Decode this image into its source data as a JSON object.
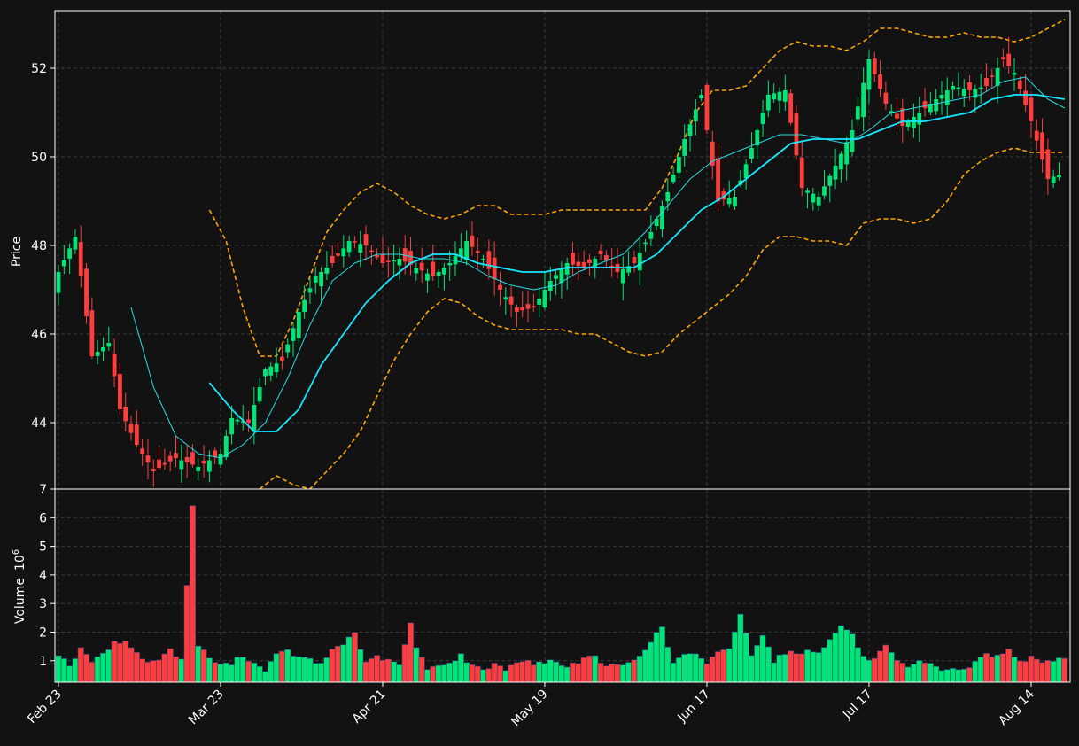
{
  "chart_data": {
    "type": "candlestick",
    "x_tick_labels": [
      "Feb 23",
      "Mar 23",
      "Apr 21",
      "May 19",
      "Jun 17",
      "Jul 17",
      "Aug 14"
    ],
    "x_tick_index": [
      0,
      29,
      58,
      87,
      116,
      145,
      174
    ],
    "price_panel": {
      "ylabel": "Price",
      "ylim": [
        42.5,
        53.3
      ],
      "y_ticks": [
        "44",
        "46",
        "48",
        "50",
        "52"
      ],
      "grid": true,
      "overlays": [
        "moving-average-short",
        "moving-average-long",
        "bollinger-upper",
        "bollinger-lower"
      ]
    },
    "volume_panel": {
      "ylabel": "Volume",
      "yunit_base": "10",
      "yunit_exp": "6",
      "ylim": [
        0.25,
        7.0
      ],
      "y_ticks": [
        "1",
        "2",
        "3",
        "4",
        "5",
        "6",
        "7"
      ],
      "grid": true
    },
    "colors": {
      "background": "#121212",
      "up": "#00e676",
      "down": "#ff3d3d",
      "ma_short": "#26d9e3",
      "ma_long": "#18e6ff",
      "bollinger": "#ffa500",
      "grid": "#3a3a3a",
      "text": "#ffffff"
    },
    "anchors": {
      "close": [
        [
          0,
          47.4
        ],
        [
          3,
          48.2
        ],
        [
          6,
          45.5
        ],
        [
          9,
          45.8
        ],
        [
          11,
          44.3
        ],
        [
          14,
          43.5
        ],
        [
          17,
          42.9
        ],
        [
          21,
          43.2
        ],
        [
          25,
          43.0
        ],
        [
          29,
          43.3
        ],
        [
          31,
          44.1
        ],
        [
          34,
          44.0
        ],
        [
          37,
          45.2
        ],
        [
          40,
          45.4
        ],
        [
          43,
          46.5
        ],
        [
          46,
          47.3
        ],
        [
          49,
          47.6
        ],
        [
          52,
          48.1
        ],
        [
          55,
          48.0
        ],
        [
          58,
          47.6
        ],
        [
          61,
          47.7
        ],
        [
          64,
          47.5
        ],
        [
          67,
          47.3
        ],
        [
          70,
          47.6
        ],
        [
          73,
          48.1
        ],
        [
          76,
          47.7
        ],
        [
          79,
          47.0
        ],
        [
          82,
          46.5
        ],
        [
          85,
          46.6
        ],
        [
          88,
          47.2
        ],
        [
          91,
          47.6
        ],
        [
          94,
          47.5
        ],
        [
          97,
          47.8
        ],
        [
          100,
          47.4
        ],
        [
          103,
          47.6
        ],
        [
          106,
          48.3
        ],
        [
          109,
          49.2
        ],
        [
          112,
          50.4
        ],
        [
          115,
          51.4
        ],
        [
          118,
          49.0
        ],
        [
          121,
          49.1
        ],
        [
          124,
          50.2
        ],
        [
          127,
          51.4
        ],
        [
          130,
          51.5
        ],
        [
          133,
          49.3
        ],
        [
          136,
          49.1
        ],
        [
          139,
          49.8
        ],
        [
          142,
          50.6
        ],
        [
          145,
          52.2
        ],
        [
          148,
          51.2
        ],
        [
          151,
          50.7
        ],
        [
          154,
          51.0
        ],
        [
          157,
          51.3
        ],
        [
          160,
          51.6
        ],
        [
          163,
          51.5
        ],
        [
          166,
          51.6
        ],
        [
          169,
          52.2
        ],
        [
          171,
          51.9
        ],
        [
          174,
          50.8
        ],
        [
          177,
          49.5
        ],
        [
          179,
          49.6
        ]
      ],
      "ma_short": [
        [
          13,
          46.6
        ],
        [
          17,
          44.8
        ],
        [
          21,
          43.7
        ],
        [
          25,
          43.3
        ],
        [
          29,
          43.2
        ],
        [
          33,
          43.5
        ],
        [
          37,
          44.0
        ],
        [
          41,
          45.0
        ],
        [
          45,
          46.2
        ],
        [
          49,
          47.2
        ],
        [
          53,
          47.6
        ],
        [
          57,
          47.8
        ],
        [
          61,
          47.8
        ],
        [
          65,
          47.7
        ],
        [
          69,
          47.7
        ],
        [
          73,
          47.6
        ],
        [
          77,
          47.3
        ],
        [
          81,
          47.1
        ],
        [
          85,
          47.0
        ],
        [
          89,
          47.1
        ],
        [
          93,
          47.4
        ],
        [
          97,
          47.6
        ],
        [
          101,
          47.8
        ],
        [
          105,
          48.3
        ],
        [
          109,
          48.9
        ],
        [
          113,
          49.5
        ],
        [
          117,
          49.9
        ],
        [
          121,
          50.1
        ],
        [
          125,
          50.3
        ],
        [
          129,
          50.5
        ],
        [
          133,
          50.5
        ],
        [
          137,
          50.4
        ],
        [
          141,
          50.3
        ],
        [
          145,
          50.6
        ],
        [
          149,
          51.0
        ],
        [
          153,
          51.1
        ],
        [
          157,
          51.2
        ],
        [
          161,
          51.3
        ],
        [
          165,
          51.4
        ],
        [
          169,
          51.7
        ],
        [
          173,
          51.8
        ],
        [
          177,
          51.3
        ],
        [
          180,
          51.1
        ]
      ],
      "ma_long": [
        [
          27,
          44.9
        ],
        [
          31,
          44.3
        ],
        [
          35,
          43.8
        ],
        [
          39,
          43.8
        ],
        [
          43,
          44.3
        ],
        [
          47,
          45.3
        ],
        [
          51,
          46.0
        ],
        [
          55,
          46.7
        ],
        [
          59,
          47.2
        ],
        [
          63,
          47.6
        ],
        [
          67,
          47.8
        ],
        [
          71,
          47.8
        ],
        [
          75,
          47.6
        ],
        [
          79,
          47.5
        ],
        [
          83,
          47.4
        ],
        [
          87,
          47.4
        ],
        [
          91,
          47.5
        ],
        [
          95,
          47.5
        ],
        [
          99,
          47.5
        ],
        [
          103,
          47.5
        ],
        [
          107,
          47.8
        ],
        [
          111,
          48.3
        ],
        [
          115,
          48.8
        ],
        [
          119,
          49.1
        ],
        [
          123,
          49.5
        ],
        [
          127,
          49.9
        ],
        [
          131,
          50.3
        ],
        [
          135,
          50.4
        ],
        [
          139,
          50.4
        ],
        [
          143,
          50.4
        ],
        [
          147,
          50.6
        ],
        [
          151,
          50.8
        ],
        [
          155,
          50.8
        ],
        [
          159,
          50.9
        ],
        [
          163,
          51.0
        ],
        [
          167,
          51.3
        ],
        [
          171,
          51.4
        ],
        [
          175,
          51.4
        ],
        [
          180,
          51.3
        ]
      ],
      "bb_upper": [
        [
          27,
          48.8
        ],
        [
          30,
          48.1
        ],
        [
          33,
          46.6
        ],
        [
          36,
          45.5
        ],
        [
          39,
          45.5
        ],
        [
          42,
          46.3
        ],
        [
          45,
          47.3
        ],
        [
          48,
          48.3
        ],
        [
          51,
          48.8
        ],
        [
          54,
          49.2
        ],
        [
          57,
          49.4
        ],
        [
          60,
          49.2
        ],
        [
          63,
          48.9
        ],
        [
          66,
          48.7
        ],
        [
          69,
          48.6
        ],
        [
          72,
          48.7
        ],
        [
          75,
          48.9
        ],
        [
          78,
          48.9
        ],
        [
          81,
          48.7
        ],
        [
          84,
          48.7
        ],
        [
          87,
          48.7
        ],
        [
          90,
          48.8
        ],
        [
          93,
          48.8
        ],
        [
          96,
          48.8
        ],
        [
          99,
          48.8
        ],
        [
          102,
          48.8
        ],
        [
          105,
          48.8
        ],
        [
          108,
          49.3
        ],
        [
          111,
          50.1
        ],
        [
          114,
          51.0
        ],
        [
          117,
          51.5
        ],
        [
          120,
          51.5
        ],
        [
          123,
          51.6
        ],
        [
          126,
          52.0
        ],
        [
          129,
          52.4
        ],
        [
          132,
          52.6
        ],
        [
          135,
          52.5
        ],
        [
          138,
          52.5
        ],
        [
          141,
          52.4
        ],
        [
          144,
          52.6
        ],
        [
          147,
          52.9
        ],
        [
          150,
          52.9
        ],
        [
          153,
          52.8
        ],
        [
          156,
          52.7
        ],
        [
          159,
          52.7
        ],
        [
          162,
          52.8
        ],
        [
          165,
          52.7
        ],
        [
          168,
          52.7
        ],
        [
          171,
          52.6
        ],
        [
          174,
          52.7
        ],
        [
          177,
          52.9
        ],
        [
          180,
          53.1
        ]
      ],
      "bb_lower": [
        [
          36,
          42.5
        ],
        [
          39,
          42.8
        ],
        [
          42,
          42.6
        ],
        [
          45,
          42.5
        ],
        [
          48,
          42.9
        ],
        [
          51,
          43.3
        ],
        [
          54,
          43.8
        ],
        [
          57,
          44.6
        ],
        [
          60,
          45.4
        ],
        [
          63,
          46.0
        ],
        [
          66,
          46.5
        ],
        [
          69,
          46.8
        ],
        [
          72,
          46.7
        ],
        [
          75,
          46.4
        ],
        [
          78,
          46.2
        ],
        [
          81,
          46.1
        ],
        [
          84,
          46.1
        ],
        [
          87,
          46.1
        ],
        [
          90,
          46.1
        ],
        [
          93,
          46.0
        ],
        [
          96,
          46.0
        ],
        [
          99,
          45.8
        ],
        [
          102,
          45.6
        ],
        [
          105,
          45.5
        ],
        [
          108,
          45.6
        ],
        [
          111,
          46.0
        ],
        [
          114,
          46.3
        ],
        [
          117,
          46.6
        ],
        [
          120,
          46.9
        ],
        [
          123,
          47.3
        ],
        [
          126,
          47.9
        ],
        [
          129,
          48.2
        ],
        [
          132,
          48.2
        ],
        [
          135,
          48.1
        ],
        [
          138,
          48.1
        ],
        [
          141,
          48.0
        ],
        [
          144,
          48.5
        ],
        [
          147,
          48.6
        ],
        [
          150,
          48.6
        ],
        [
          153,
          48.5
        ],
        [
          156,
          48.6
        ],
        [
          159,
          49.0
        ],
        [
          162,
          49.6
        ],
        [
          165,
          49.9
        ],
        [
          168,
          50.1
        ],
        [
          171,
          50.2
        ],
        [
          174,
          50.1
        ],
        [
          177,
          50.1
        ],
        [
          180,
          50.1
        ]
      ],
      "volume": [
        [
          0,
          1.25
        ],
        [
          2,
          0.85
        ],
        [
          4,
          1.4
        ],
        [
          6,
          1.0
        ],
        [
          8,
          1.2
        ],
        [
          10,
          1.7
        ],
        [
          12,
          1.65
        ],
        [
          14,
          1.3
        ],
        [
          16,
          0.9
        ],
        [
          18,
          1.1
        ],
        [
          20,
          1.4
        ],
        [
          22,
          1.0
        ],
        [
          24,
          6.4
        ],
        [
          25,
          1.55
        ],
        [
          27,
          1.1
        ],
        [
          29,
          0.85
        ],
        [
          31,
          0.9
        ],
        [
          33,
          1.2
        ],
        [
          35,
          0.9
        ],
        [
          37,
          0.7
        ],
        [
          39,
          1.2
        ],
        [
          41,
          1.35
        ],
        [
          43,
          1.1
        ],
        [
          45,
          1.05
        ],
        [
          47,
          0.85
        ],
        [
          49,
          1.4
        ],
        [
          51,
          1.6
        ],
        [
          53,
          2.0
        ],
        [
          55,
          0.9
        ],
        [
          57,
          1.15
        ],
        [
          59,
          1.0
        ],
        [
          61,
          0.85
        ],
        [
          63,
          2.3
        ],
        [
          64,
          1.45
        ],
        [
          66,
          0.7
        ],
        [
          68,
          0.9
        ],
        [
          70,
          0.9
        ],
        [
          72,
          1.2
        ],
        [
          74,
          0.8
        ],
        [
          76,
          0.7
        ],
        [
          78,
          0.9
        ],
        [
          80,
          0.7
        ],
        [
          82,
          1.0
        ],
        [
          84,
          0.95
        ],
        [
          86,
          0.9
        ],
        [
          88,
          1.05
        ],
        [
          90,
          0.8
        ],
        [
          92,
          0.9
        ],
        [
          94,
          1.05
        ],
        [
          96,
          1.15
        ],
        [
          98,
          0.8
        ],
        [
          100,
          0.85
        ],
        [
          102,
          0.9
        ],
        [
          104,
          1.2
        ],
        [
          106,
          1.7
        ],
        [
          108,
          2.15
        ],
        [
          110,
          0.9
        ],
        [
          112,
          1.25
        ],
        [
          114,
          1.2
        ],
        [
          116,
          0.85
        ],
        [
          118,
          1.35
        ],
        [
          120,
          1.45
        ],
        [
          122,
          2.6
        ],
        [
          124,
          1.25
        ],
        [
          126,
          1.95
        ],
        [
          128,
          1.0
        ],
        [
          130,
          1.3
        ],
        [
          132,
          1.25
        ],
        [
          134,
          1.35
        ],
        [
          136,
          1.35
        ],
        [
          138,
          1.7
        ],
        [
          140,
          2.25
        ],
        [
          142,
          1.9
        ],
        [
          144,
          1.1
        ],
        [
          146,
          1.05
        ],
        [
          148,
          1.5
        ],
        [
          150,
          0.95
        ],
        [
          152,
          0.75
        ],
        [
          154,
          0.95
        ],
        [
          156,
          0.85
        ],
        [
          158,
          0.7
        ],
        [
          160,
          0.75
        ],
        [
          162,
          0.65
        ],
        [
          164,
          0.95
        ],
        [
          166,
          1.25
        ],
        [
          168,
          1.15
        ],
        [
          170,
          1.4
        ],
        [
          172,
          1.0
        ],
        [
          174,
          1.1
        ],
        [
          176,
          0.9
        ],
        [
          178,
          1.05
        ],
        [
          180,
          1.1
        ]
      ]
    }
  }
}
